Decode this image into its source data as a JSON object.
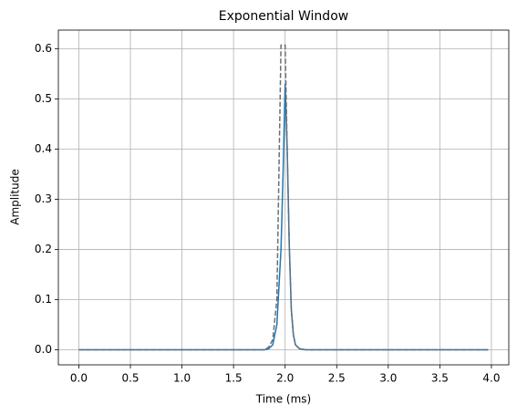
{
  "chart_data": {
    "type": "line",
    "title": "Exponential Window",
    "x_label": "Time (ms)",
    "y_label": "Amplitude",
    "x": [
      0,
      1.8,
      1.84,
      1.88,
      1.92,
      1.96,
      1.98,
      2.0,
      2.02,
      2.04,
      2.06,
      2.08,
      2.1,
      2.14,
      2.2,
      3.97
    ],
    "series": [
      {
        "color": "#1f77b4",
        "linestyle": "solid",
        "values": [
          0,
          0,
          0.002,
          0.01,
          0.05,
          0.2,
          0.35,
          0.53,
          0.4,
          0.21,
          0.08,
          0.03,
          0.01,
          0.002,
          0,
          0
        ]
      },
      {
        "color": "#6e6e6e",
        "linestyle": "dashed",
        "values": [
          0,
          0,
          0.005,
          0.02,
          0.1,
          0.607,
          0.607,
          0.607,
          0.4,
          0.21,
          0.08,
          0.03,
          0.01,
          0.002,
          0,
          0
        ]
      }
    ],
    "xlim": [
      -0.1985,
      4.1685
    ],
    "ylim": [
      -0.03,
      0.637
    ],
    "xticks": [
      {
        "value": 0,
        "label": "0.0"
      },
      {
        "value": 0.5,
        "label": "0.5"
      },
      {
        "value": 1,
        "label": "1.0"
      },
      {
        "value": 1.5,
        "label": "1.5"
      },
      {
        "value": 2,
        "label": "2.0"
      },
      {
        "value": 2.5,
        "label": "2.5"
      },
      {
        "value": 3,
        "label": "3.0"
      },
      {
        "value": 3.5,
        "label": "3.5"
      },
      {
        "value": 4,
        "label": "4.0"
      }
    ],
    "yticks": [
      {
        "value": 0,
        "label": "0.0"
      },
      {
        "value": 0.1,
        "label": "0.1"
      },
      {
        "value": 0.2,
        "label": "0.2"
      },
      {
        "value": 0.3,
        "label": "0.3"
      },
      {
        "value": 0.4,
        "label": "0.4"
      },
      {
        "value": 0.5,
        "label": "0.5"
      },
      {
        "value": 0.6,
        "label": "0.6"
      }
    ],
    "grid": true
  }
}
